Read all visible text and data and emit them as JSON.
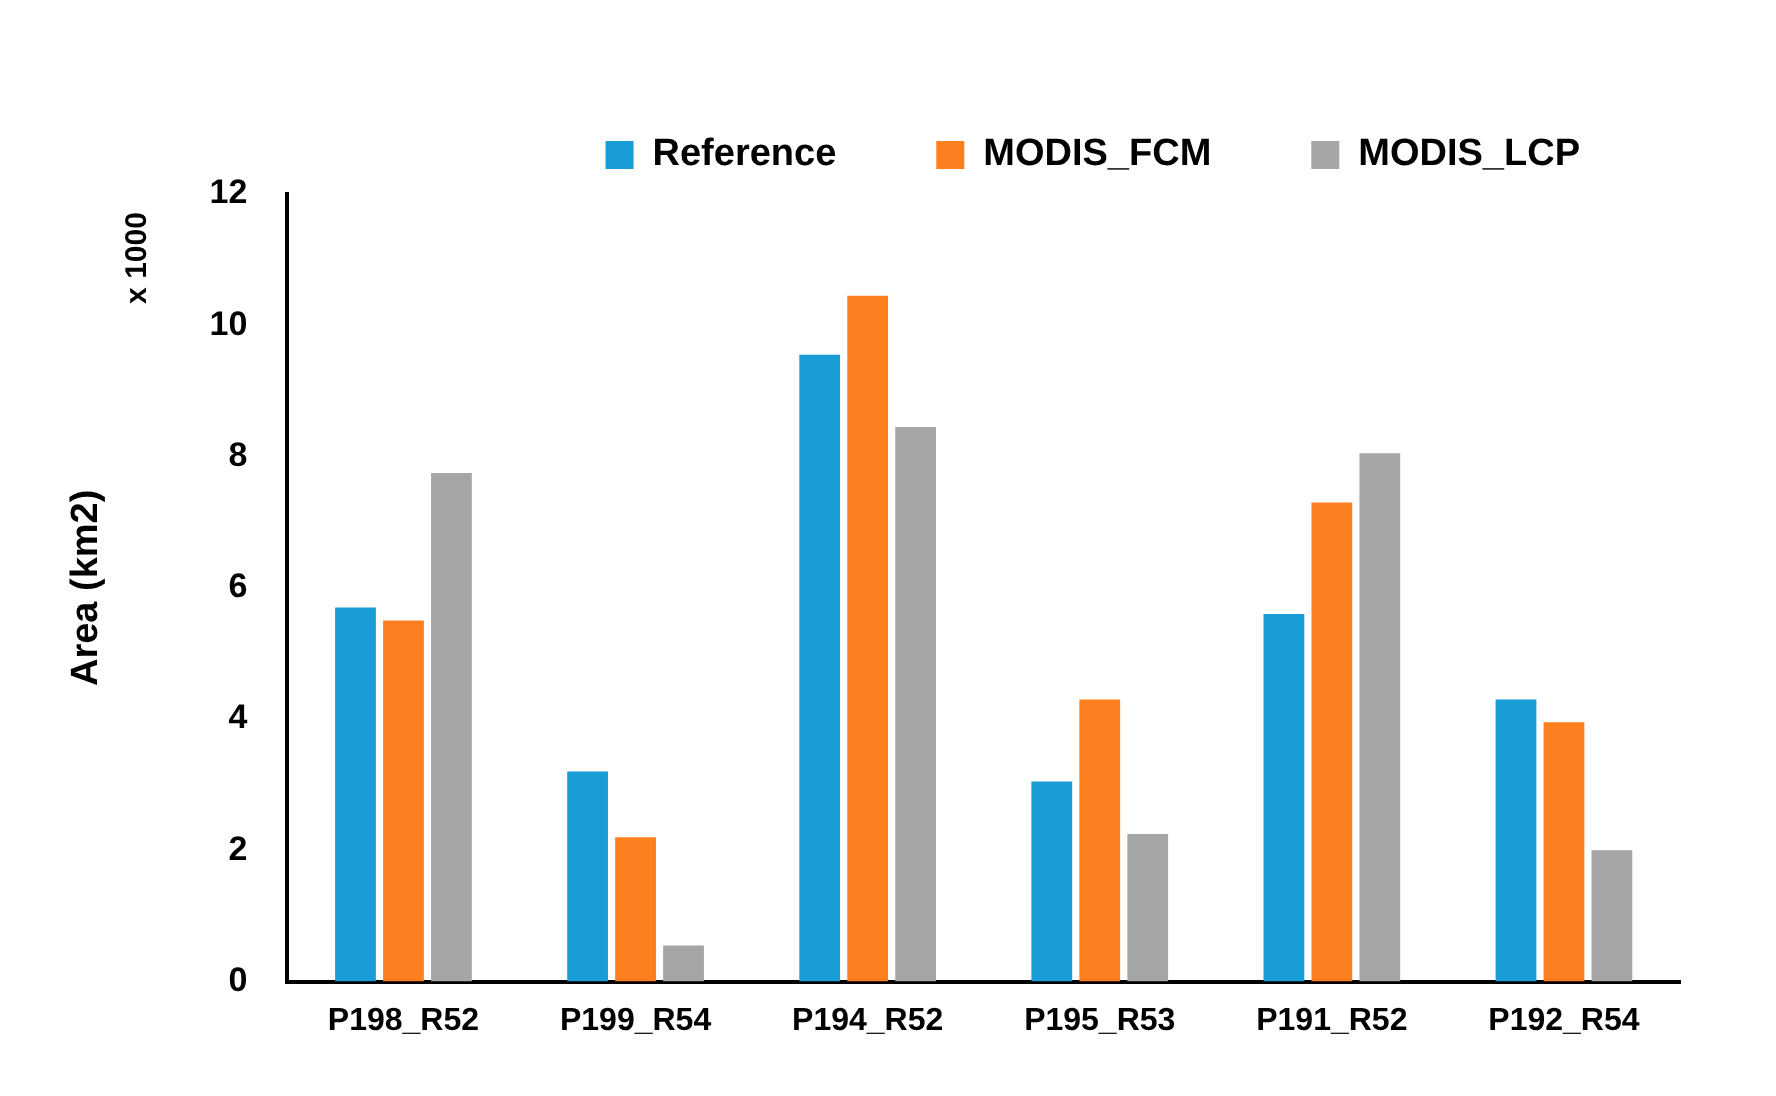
{
  "chart_data": {
    "type": "bar",
    "ylabel": "Area (km2)",
    "annotations": [
      "x 1000"
    ],
    "categories": [
      "P198_R52",
      "P199_R54",
      "P194_R52",
      "P195_R53",
      "P191_R52",
      "P192_R54"
    ],
    "series": [
      {
        "name": "Reference",
        "color": "#189dd6",
        "values": [
          5.7,
          3.2,
          9.55,
          3.05,
          5.6,
          4.3
        ]
      },
      {
        "name": "MODIS_FCM",
        "color": "#fe7f1f",
        "values": [
          5.5,
          2.2,
          10.45,
          4.3,
          7.3,
          3.95
        ]
      },
      {
        "name": "MODIS_LCP",
        "color": "#a6a6a6",
        "values": [
          7.75,
          0.55,
          8.45,
          2.25,
          8.05,
          2.0
        ]
      }
    ],
    "ylim": [
      0,
      12
    ],
    "yticks": [
      0,
      2,
      4,
      6,
      8,
      10,
      12
    ],
    "grid": false,
    "legend": "top"
  }
}
